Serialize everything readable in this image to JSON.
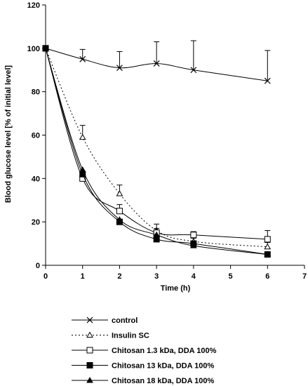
{
  "chart_data": {
    "type": "line",
    "xlabel": "Time (h)",
    "ylabel": "Blood glucose level [% of initial level]",
    "xlim": [
      0,
      7
    ],
    "ylim": [
      0,
      120
    ],
    "xticks": [
      0,
      1,
      2,
      3,
      4,
      5,
      6,
      7
    ],
    "yticks": [
      0,
      20,
      40,
      60,
      80,
      100,
      120
    ],
    "grid": false,
    "legend_position": "bottom",
    "x": [
      0,
      1,
      2,
      3,
      4,
      6
    ],
    "series": [
      {
        "name": "control",
        "marker": "x",
        "line_style": "solid",
        "color": "#000000",
        "values": [
          100,
          95,
          91,
          93,
          90,
          85
        ],
        "error": [
          0,
          4.5,
          7.5,
          10,
          13.5,
          14
        ]
      },
      {
        "name": "Insulin SC",
        "marker": "open-triangle",
        "line_style": "dotted",
        "color": "#000000",
        "values": [
          100,
          59,
          33,
          16,
          11,
          8.5
        ],
        "error": [
          0,
          5.5,
          4,
          3,
          1.5,
          2
        ]
      },
      {
        "name": "Chitosan 1.3 kDa, DDA 100%",
        "marker": "open-square",
        "line_style": "solid",
        "color": "#000000",
        "values": [
          100,
          40,
          25,
          15,
          14,
          12
        ],
        "error": [
          0,
          1,
          3,
          2,
          1.5,
          4
        ]
      },
      {
        "name": "Chitosan 13 kDa, DDA 100%",
        "marker": "filled-square",
        "line_style": "solid",
        "color": "#000000",
        "values": [
          100,
          42,
          20,
          12,
          10,
          5
        ],
        "error": [
          0,
          0,
          0,
          0,
          0,
          0
        ]
      },
      {
        "name": "Chitosan 18 kDa, DDA 100%",
        "marker": "filled-triangle",
        "line_style": "solid",
        "color": "#000000",
        "values": [
          100,
          44,
          21,
          14,
          9,
          5
        ],
        "error": [
          0,
          0,
          0,
          0,
          0,
          0
        ]
      }
    ]
  }
}
